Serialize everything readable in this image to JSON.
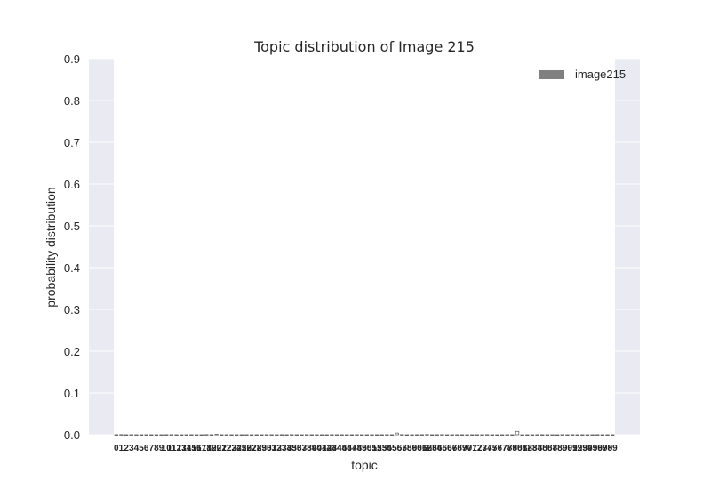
{
  "chart_data": {
    "type": "bar",
    "title": "Topic distribution of Image 215",
    "xlabel": "topic",
    "ylabel": "probability distribution",
    "ylim": [
      0,
      0.9
    ],
    "yticks": [
      0.0,
      0.1,
      0.2,
      0.3,
      0.4,
      0.5,
      0.6,
      0.7,
      0.8,
      0.9
    ],
    "grid": true,
    "legend": "top-right",
    "xtick_count": 100,
    "series": [
      {
        "name": "image215",
        "color": "#808080",
        "values": [
          0.0001,
          0.0003,
          0.0001,
          0.0002,
          0.0001,
          0.0001,
          0.0002,
          0.0001,
          0.0001,
          0.0001,
          0.0002,
          0.0003,
          0.0001,
          0.0001,
          0.0001,
          0.0002,
          0.0001,
          0.0001,
          0.0003,
          0.0001,
          0.001,
          0.0001,
          0.0002,
          0.0001,
          0.0001,
          0.0001,
          0.0002,
          0.0001,
          0.0001,
          0.0001,
          0.0002,
          0.0001,
          0.0001,
          0.0002,
          0.0001,
          0.0003,
          0.0001,
          0.0001,
          0.0002,
          0.0001,
          0.0001,
          0.0001,
          0.0001,
          0.0002,
          0.0001,
          0.0001,
          0.0001,
          0.0001,
          0.0002,
          0.0001,
          0.0001,
          0.0001,
          0.0001,
          0.0001,
          0.0002,
          0.0001,
          0.004,
          0.0003,
          0.0001,
          0.0001,
          0.0001,
          0.0002,
          0.0005,
          0.0001,
          0.0002,
          0.0003,
          0.0001,
          0.0001,
          0.0002,
          0.0001,
          0.0001,
          0.0001,
          0.0002,
          0.0001,
          0.0003,
          0.0001,
          0.0001,
          0.0001,
          0.0002,
          0.0001,
          0.008,
          0.0001,
          0.0001,
          0.0001,
          0.0002,
          0.0001,
          0.0001,
          0.0001,
          0.0001,
          0.0003,
          0.0001,
          0.0002,
          0.0001,
          0.0001,
          0.0001,
          0.0001,
          0.0002,
          0.0001,
          0.0001,
          0.0001
        ]
      }
    ]
  }
}
